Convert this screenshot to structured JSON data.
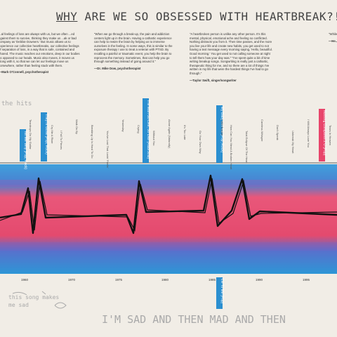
{
  "title": {
    "lead": "WHY",
    "rest": "ARE WE SO OBSESSED WITH HEARTBREAK?!"
  },
  "quotes": [
    {
      "text": "...al feelings of loss are always with us, but we often ...ed against them to survive, thinking they make us ...ak or bad company as 'Debbie Downers.' But music allows us to experience our collective heartbreaks, our collective feelings of separation of loss, in a way that is safe, contained and shared. The music reaches our emotions, deep in our bodies as opposed to our heads. Music also moves, it moves us along with it, so that we can let our feelings move us somewhere, rather than feeling stuck with them.",
      "author": "—Mark O'Connell, psychotherapist"
    },
    {
      "text": "\"When we go through a break-up, the pain and addiction centers light up in the brain. Having a cathartic experience can help to rewire the brain by helping us to immerse ourselves in the feeling. In some ways, this is similar to the exposure therapy I use to treat a veteran with PTSD. By recalling a painful or traumatic event, you help the brain to reprocess the memory. Sometimes, that can help you go through something instead of going around it.\"",
      "author": "—Dr. Mike Dow, psychotherapist"
    },
    {
      "text": "\"A heartbroken person is unlike any other person. It's this mental, physical, emotional ache and feeling so conflicted. Nothing distracts you from it. Then time passes, and the more you live your life and create new habits, you get used to not having a text message every morning saying, 'Hello, beautiful. Good morning.' You get used to not calling someone at night to tell them how your day was.\" \"I've spent quite a bit of time writing breakup songs. Songwriting is really just a cathartic, therapeutic thing for me, and so there are a lot of things I've written in my life that were the hardest things I've had to go through.\"",
      "author": "—Taylor Swift, singer/songwriter"
    },
    {
      "text": "\"While... ...",
      "author": "—He..."
    }
  ],
  "timeline": {
    "years": [
      "1960",
      "1970",
      "1975",
      "1980",
      "1985",
      "1990",
      "1995"
    ]
  },
  "songs": {
    "highlighted": [
      "Tell Me Why (Pop, Rock)",
      "They're Gone (Pop, Rock)",
      "The Man Go Like, So Like (R&B/Soul)",
      "My Baby Left Me (Pop, Rock)",
      "Nothing Compares 2 U (Pop)",
      "Lie To Me (Pop)"
    ],
    "others": [
      "Teardrops On My Guitar",
      "Cry Me A River",
      "I Fall To Pieces",
      "Walk On By",
      "Breaking Up Is Hard To Do",
      "You've Lost That Lovin' Feelin'",
      "Yesterday",
      "Crying",
      "Without You",
      "Alone Again (Naturally)",
      "It's Too Late",
      "Go Your Own Way",
      "I Will Survive",
      "How Can You Mend A Broken Heart",
      "Total Eclipse Of The Heart",
      "Careless Whisper",
      "Don't Speak",
      "Unbreak My Heart",
      "I Will Always Love You",
      "Tears In Heaven"
    ]
  },
  "annotations": [
    "the hits",
    "this song makes me sad",
    "I'M SAD AND THEN MAD AND THEN"
  ]
}
